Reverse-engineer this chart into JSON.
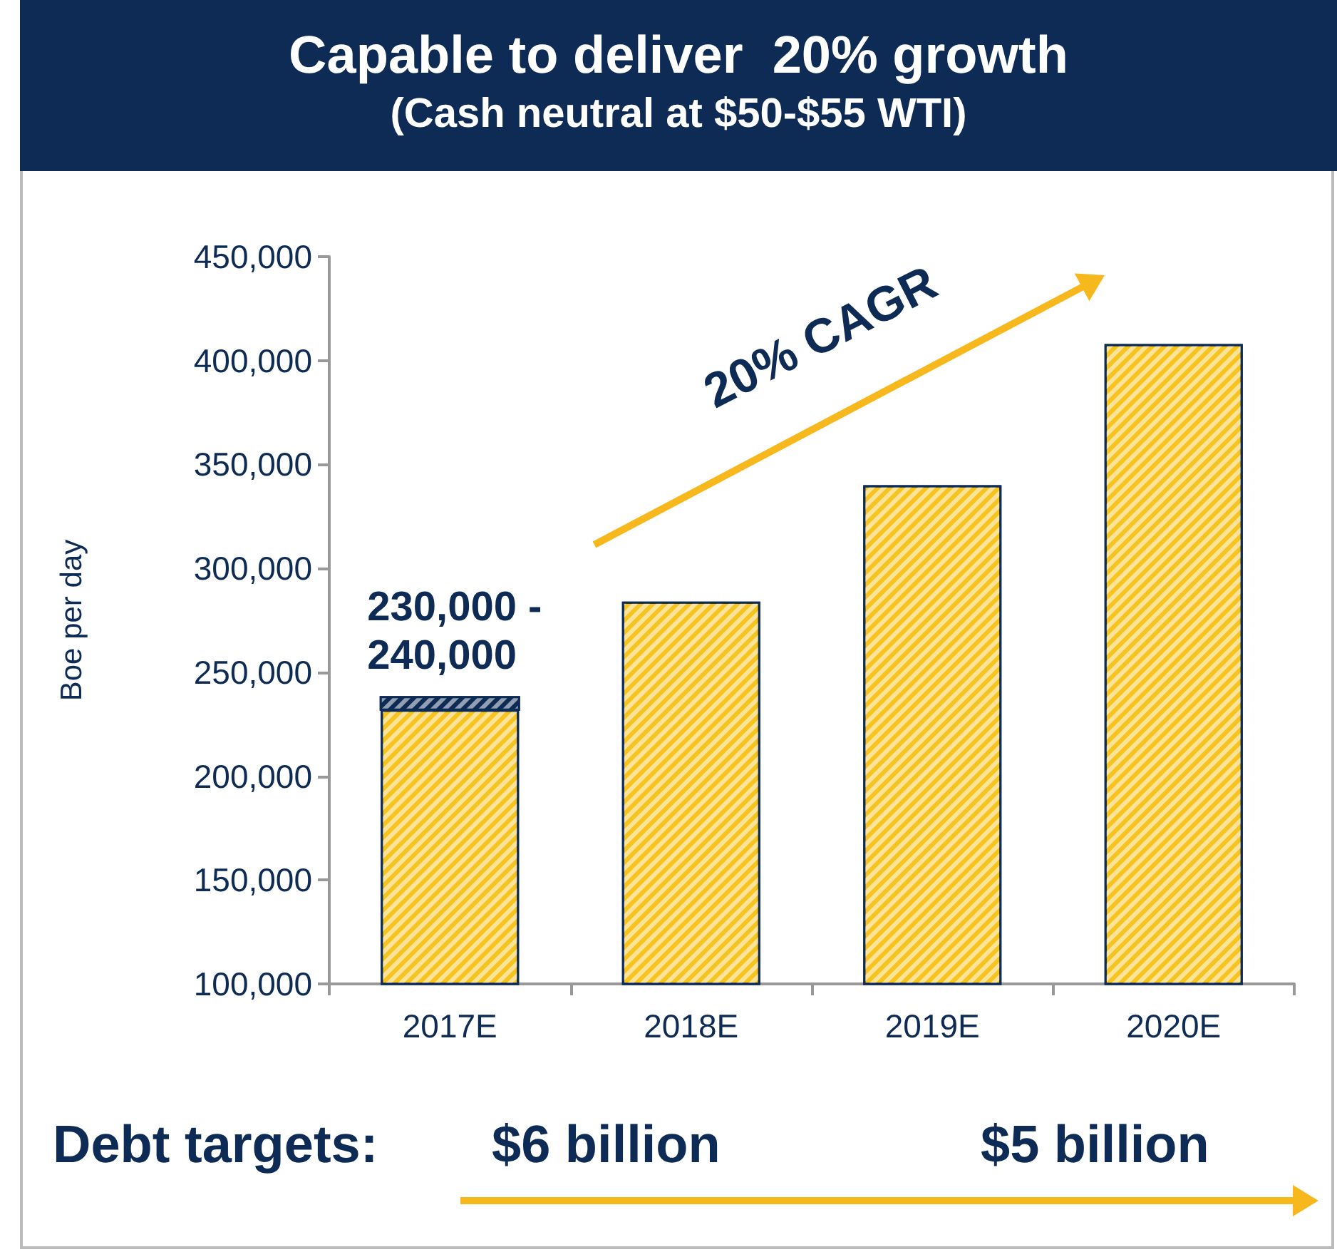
{
  "chart_data": {
    "type": "bar",
    "title": "Capable to deliver  20% growth",
    "subtitle": "(Cash neutral at $50-$55 WTI)",
    "ylabel": "Boe per day",
    "categories": [
      "2017E",
      "2018E",
      "2019E",
      "2020E"
    ],
    "series": [
      {
        "color": "#f7c31e",
        "values": [
          232000,
          284000,
          340000,
          408000
        ]
      },
      {
        "color": "#0d2b55",
        "values": [
          6000,
          null,
          null,
          null
        ],
        "base": [
          232000,
          null,
          null,
          null
        ]
      }
    ],
    "ylim": [
      100000,
      450000
    ],
    "yticks": [
      {
        "value": 100000,
        "label": "100,000"
      },
      {
        "value": 150000,
        "label": "150,000"
      },
      {
        "value": 200000,
        "label": "200,000"
      },
      {
        "value": 250000,
        "label": "250,000"
      },
      {
        "value": 300000,
        "label": "300,000"
      },
      {
        "value": 350000,
        "label": "350,000"
      },
      {
        "value": 400000,
        "label": "400,000"
      },
      {
        "value": 450000,
        "label": "450,000"
      }
    ],
    "grid": false,
    "annotations": [
      {
        "text": "230,000 - 240,000",
        "x": "2017E",
        "y": 238000
      },
      "20% CAGR",
      "Debt targets:",
      "$6 billion",
      "$5 billion"
    ]
  }
}
